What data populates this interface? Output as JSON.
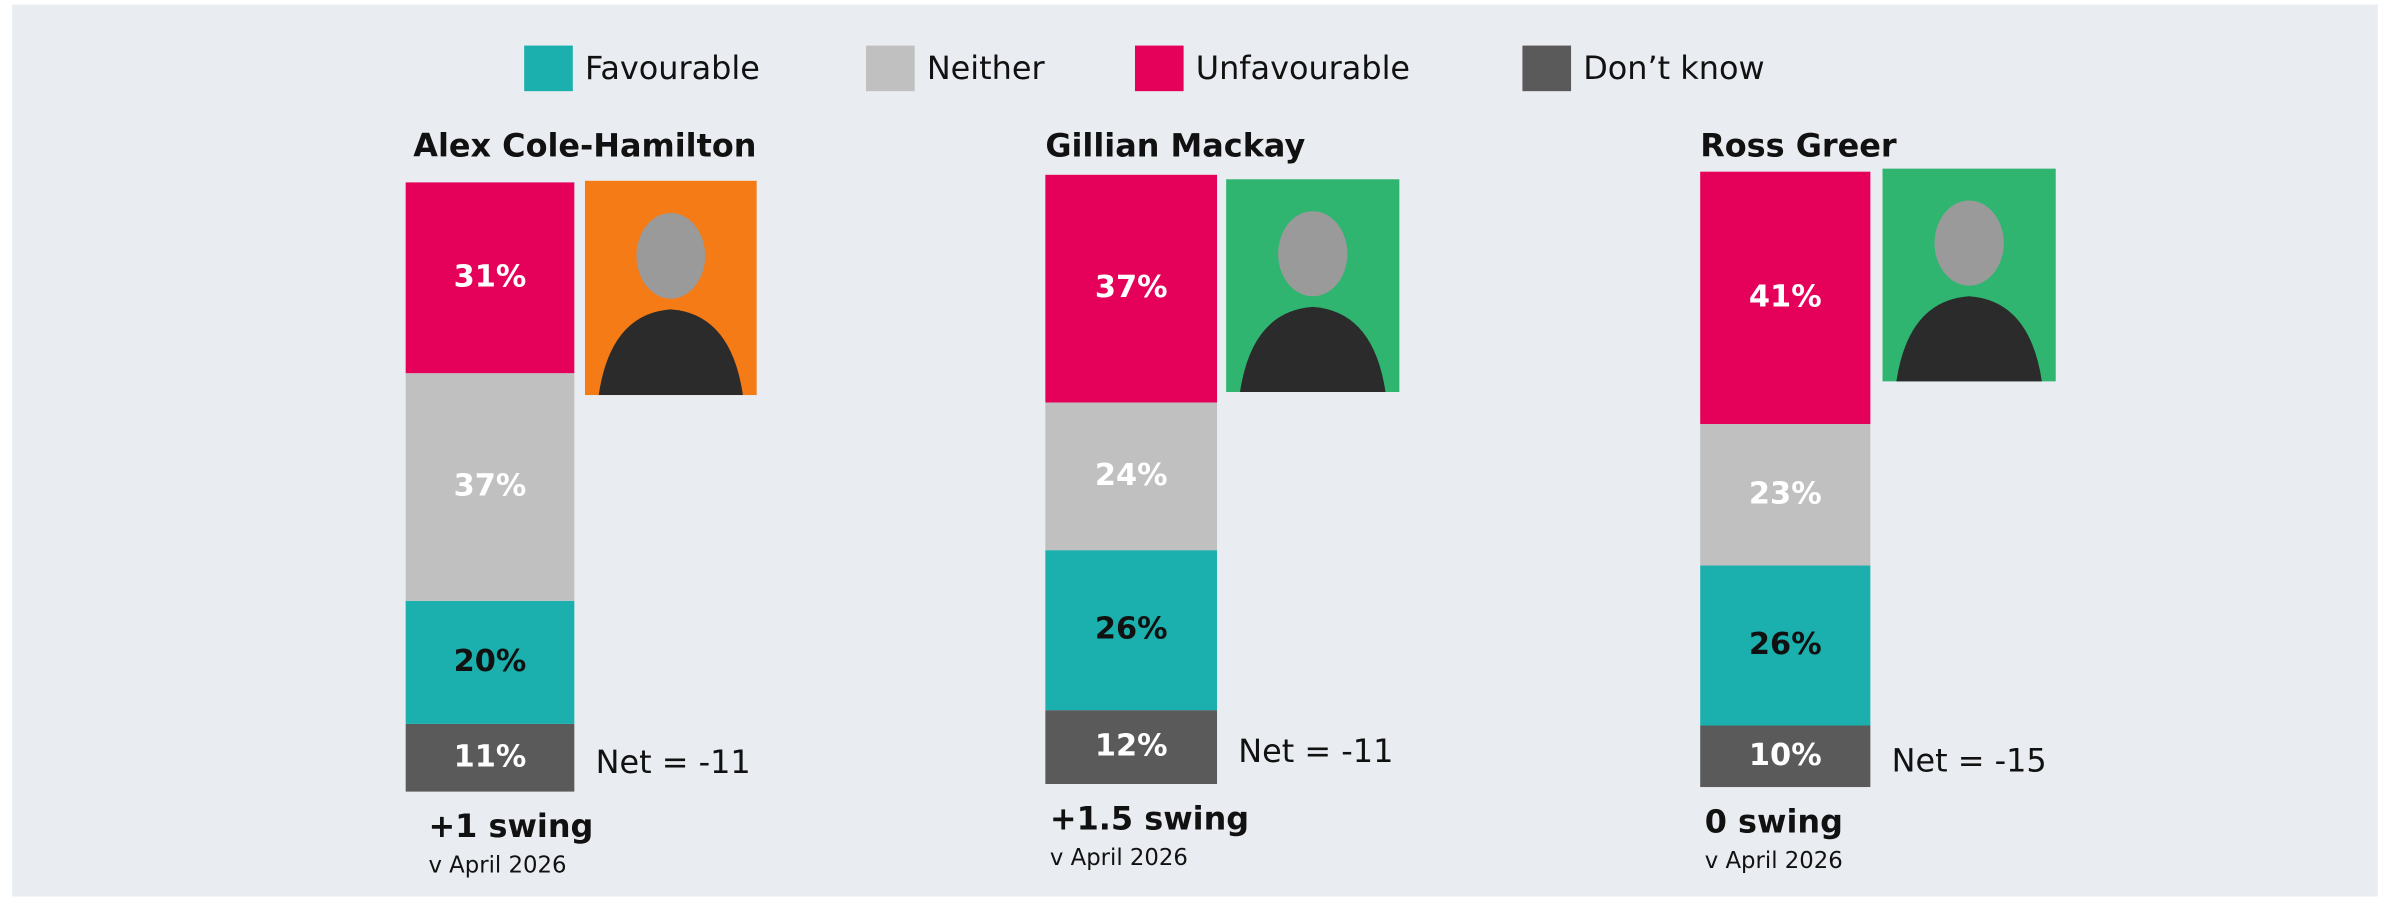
{
  "chart_data": {
    "type": "stacked_bar",
    "categories": [
      "Alex Cole-Hamilton",
      "Gillian Mackay",
      "Ross Greer"
    ],
    "series": [
      {
        "name": "Favourable",
        "color": "#1bb0ad",
        "values": [
          20,
          26,
          26
        ],
        "value_labels": [
          "20%",
          "26%",
          "26%"
        ]
      },
      {
        "name": "Neither",
        "color": "#c0c0c0",
        "values": [
          37,
          24,
          23
        ],
        "value_labels": [
          "37%",
          "24%",
          "23%"
        ]
      },
      {
        "name": "Unfavourable",
        "color": "#e5005a",
        "values": [
          31,
          37,
          41
        ],
        "value_labels": [
          "31%",
          "37%",
          "41%"
        ]
      },
      {
        "name": "Don’t know",
        "color": "#5a5a5a",
        "values": [
          11,
          12,
          10
        ],
        "value_labels": [
          "11%",
          "12%",
          "10%"
        ]
      }
    ],
    "net_labels": [
      "Net = -11",
      "Net = -11",
      "Net = -15"
    ],
    "swing_labels": [
      "+1 swing",
      "+1.5 swing",
      "0 swing"
    ],
    "swing_note": "v April 2026"
  }
}
